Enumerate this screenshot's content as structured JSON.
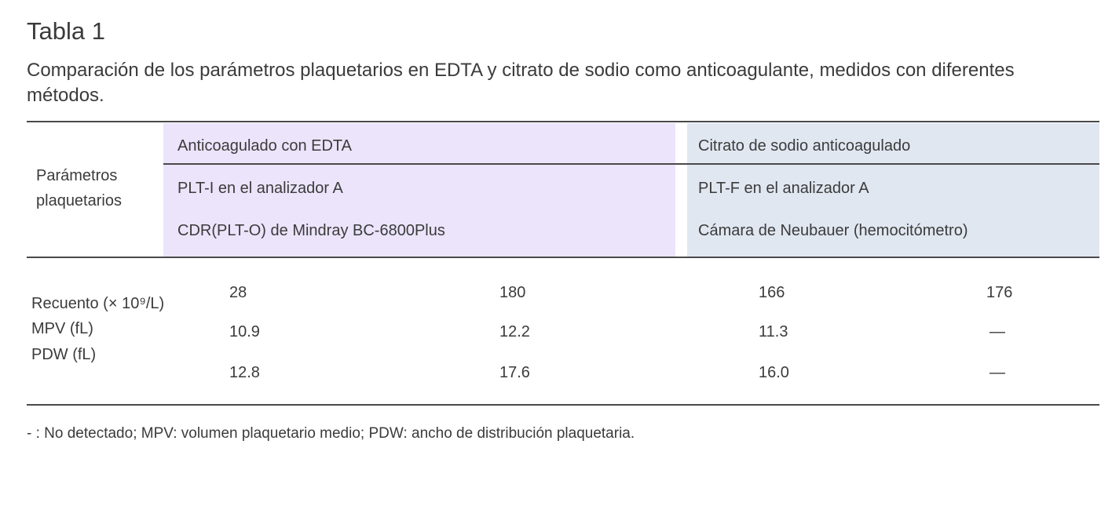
{
  "title": "Tabla 1",
  "caption": "Comparación de los parámetros plaquetarios en EDTA y citrato de sodio como anticoagulante, medidos con diferentes métodos.",
  "colors": {
    "edta_bg": "#ebe4fb",
    "citrate_bg": "#e0e7f1",
    "text": "#3b3b3b"
  },
  "header": {
    "row_label": [
      "Parámetros",
      "plaquetarios"
    ],
    "group_edta": "Anticoagulado con EDTA",
    "group_citrate": "Citrato de sodio anticoagulado",
    "methods": [
      "PLT-I en el analizador A",
      "CDR(PLT-O) de Mindray BC-6800Plus",
      "PLT-F en el analizador A",
      "Cámara de Neubauer (hemocitómetro)"
    ]
  },
  "rows": [
    {
      "label": "Recuento (× 10⁹/L)",
      "values": [
        "28",
        "180",
        "166",
        "176"
      ]
    },
    {
      "label": "MPV (fL)",
      "values": [
        "10.9",
        "12.2",
        "11.3",
        "—"
      ]
    },
    {
      "label": "PDW (fL)",
      "values": [
        "12.8",
        "17.6",
        "16.0",
        "—"
      ]
    }
  ],
  "footnote": "- : No detectado; MPV: volumen plaquetario medio; PDW: ancho de distribución plaquetaria."
}
